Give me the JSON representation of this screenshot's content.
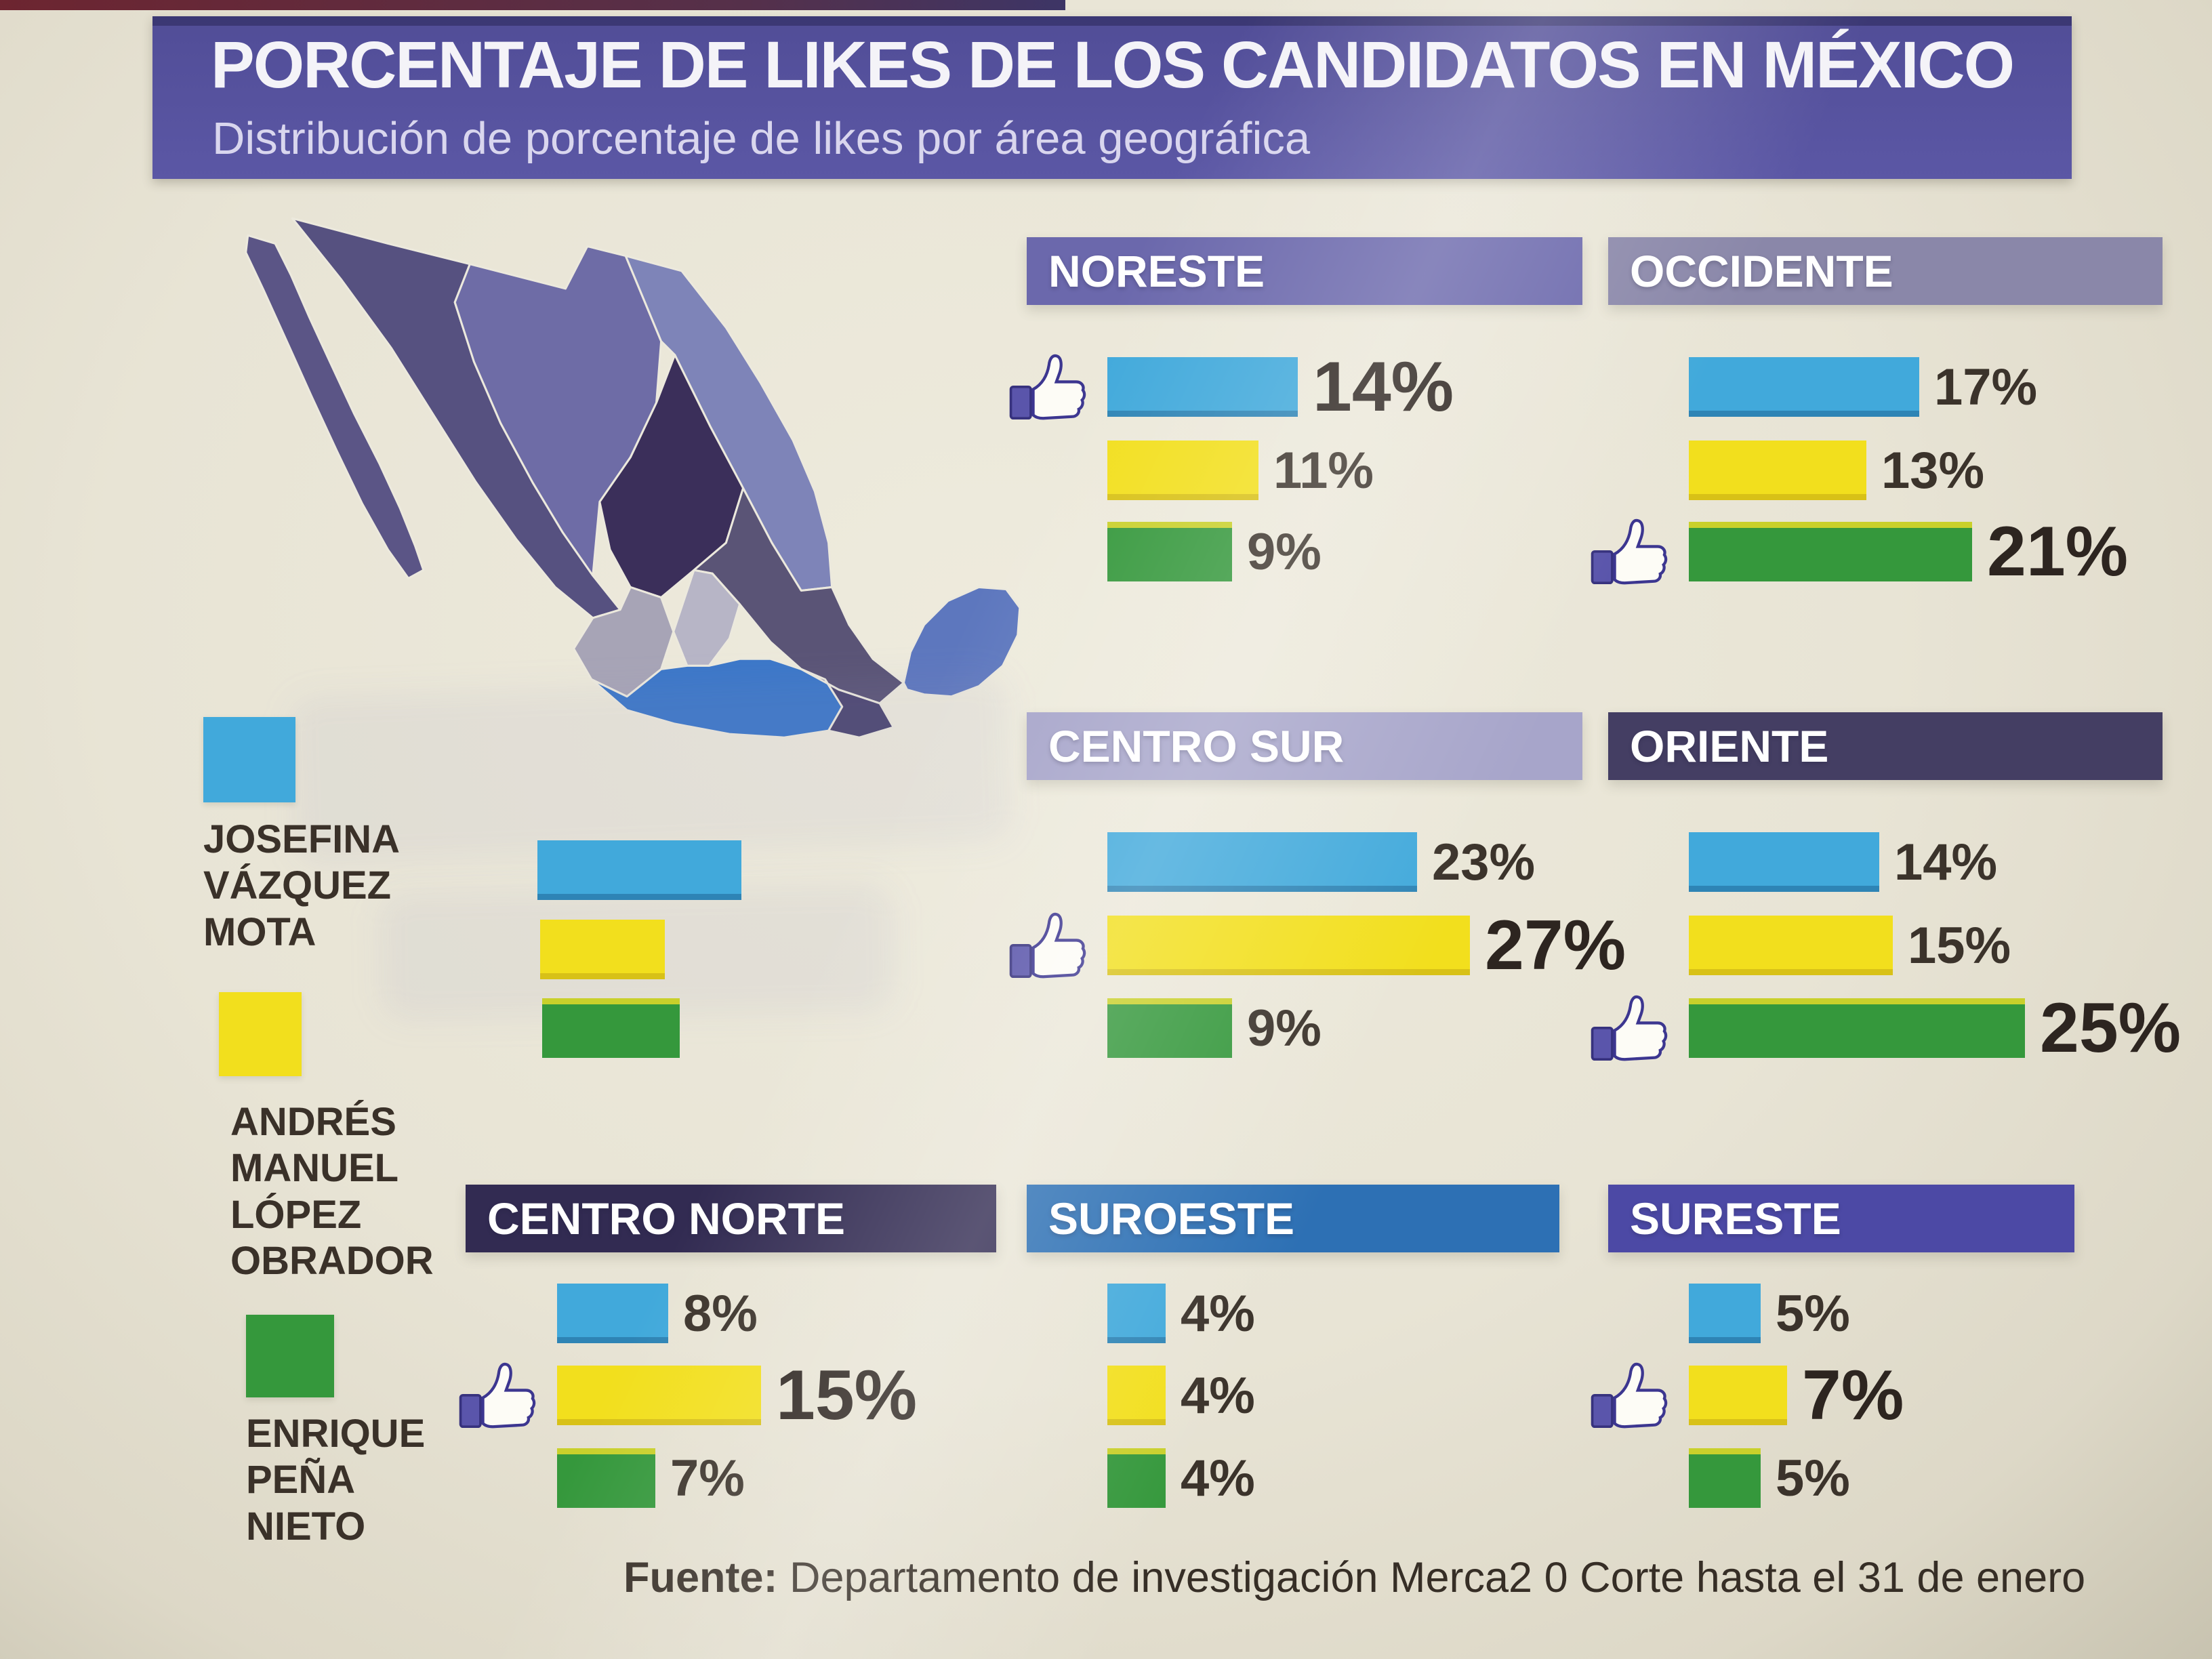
{
  "header": {
    "title": "PORCENTAJE DE LIKES DE LOS CANDIDATOS EN MÉXICO",
    "subtitle": "Distribución de porcentaje de likes por área geográfica"
  },
  "legend": {
    "candidates": [
      {
        "id": "jvm",
        "name_lines": "JOSEFINA\nVÁZQUEZ\nMOTA",
        "color": "#41a9db"
      },
      {
        "id": "amlo",
        "name_lines": "ANDRÉS\nMANUEL\nLÓPEZ\nOBRADOR",
        "color": "#f2df1d"
      },
      {
        "id": "epn",
        "name_lines": "ENRIQUE\nPEÑA\nNIETO",
        "color": "#35983c"
      }
    ]
  },
  "candidate_colors": {
    "jvm": {
      "fill": "#41a9db",
      "edge": "#2e84b5"
    },
    "amlo": {
      "fill": "#f2df1d",
      "edge": "#d8c117"
    },
    "epn": {
      "fill": "#35983c",
      "edge": "#c9d02b"
    }
  },
  "regions": [
    {
      "id": "noreste",
      "label": "NORESTE",
      "header_bg": "#6b68ac",
      "bars": [
        {
          "candidate": "jvm",
          "value": 14,
          "label": "14%",
          "thumb": true,
          "emphasized": true
        },
        {
          "candidate": "amlo",
          "value": 11,
          "label": "11%",
          "thumb": false,
          "emphasized": false
        },
        {
          "candidate": "epn",
          "value": 9,
          "label": "9%",
          "thumb": false,
          "emphasized": false
        }
      ]
    },
    {
      "id": "occidente",
      "label": "OCCIDENTE",
      "header_bg": "#8a87a9",
      "bars": [
        {
          "candidate": "jvm",
          "value": 17,
          "label": "17%",
          "thumb": false,
          "emphasized": false
        },
        {
          "candidate": "amlo",
          "value": 13,
          "label": "13%",
          "thumb": false,
          "emphasized": false
        },
        {
          "candidate": "epn",
          "value": 21,
          "label": "21%",
          "thumb": true,
          "emphasized": true
        }
      ]
    },
    {
      "id": "centro_sur",
      "label": "CENTRO SUR",
      "header_bg": "#a7a5ca",
      "bars": [
        {
          "candidate": "jvm",
          "value": 23,
          "label": "23%",
          "thumb": false,
          "emphasized": false
        },
        {
          "candidate": "amlo",
          "value": 27,
          "label": "27%",
          "thumb": true,
          "emphasized": true
        },
        {
          "candidate": "epn",
          "value": 9,
          "label": "9%",
          "thumb": false,
          "emphasized": false
        }
      ]
    },
    {
      "id": "oriente",
      "label": "ORIENTE",
      "header_bg": "#443e63",
      "bars": [
        {
          "candidate": "jvm",
          "value": 14,
          "label": "14%",
          "thumb": false,
          "emphasized": false
        },
        {
          "candidate": "amlo",
          "value": 15,
          "label": "15%",
          "thumb": false,
          "emphasized": false
        },
        {
          "candidate": "epn",
          "value": 25,
          "label": "25%",
          "thumb": true,
          "emphasized": true
        }
      ]
    },
    {
      "id": "centro_norte",
      "label": "CENTRO NORTE",
      "header_bg": "#322b52",
      "bars": [
        {
          "candidate": "jvm",
          "value": 8,
          "label": "8%",
          "thumb": false,
          "emphasized": false
        },
        {
          "candidate": "amlo",
          "value": 15,
          "label": "15%",
          "thumb": true,
          "emphasized": true
        },
        {
          "candidate": "epn",
          "value": 7,
          "label": "7%",
          "thumb": false,
          "emphasized": false
        }
      ]
    },
    {
      "id": "suroeste",
      "label": "SUROESTE",
      "header_bg": "#2d70b4",
      "bars": [
        {
          "candidate": "jvm",
          "value": 4,
          "label": "4%",
          "thumb": false,
          "emphasized": false
        },
        {
          "candidate": "amlo",
          "value": 4,
          "label": "4%",
          "thumb": false,
          "emphasized": false
        },
        {
          "candidate": "epn",
          "value": 4,
          "label": "4%",
          "thumb": false,
          "emphasized": false
        }
      ]
    },
    {
      "id": "sureste",
      "label": "SURESTE",
      "header_bg": "#4c49a5",
      "bars": [
        {
          "candidate": "jvm",
          "value": 5,
          "label": "5%",
          "thumb": false,
          "emphasized": false
        },
        {
          "candidate": "amlo",
          "value": 7,
          "label": "7%",
          "thumb": true,
          "emphasized": true
        },
        {
          "candidate": "epn",
          "value": 5,
          "label": "5%",
          "thumb": false,
          "emphasized": false
        }
      ]
    }
  ],
  "unlabeled_bar_group": {
    "labels_visible": false,
    "bars": [
      {
        "candidate": "jvm",
        "estimated_value": 15
      },
      {
        "candidate": "amlo",
        "estimated_value": 9
      },
      {
        "candidate": "epn",
        "estimated_value": 10
      }
    ]
  },
  "footer": {
    "prefix": "Fuente:",
    "text": " Departamento de investigación Merca2 0 Corte hasta el 31 de enero"
  },
  "chart_data": {
    "type": "bar",
    "title": "PORCENTAJE DE LIKES DE LOS CANDIDATOS EN MÉXICO",
    "subtitle": "Distribución de porcentaje de likes por área geográfica",
    "unit": "%",
    "categories": [
      "Josefina Vázquez Mota",
      "Andrés Manuel López Obrador",
      "Enrique Peña Nieto"
    ],
    "category_colors": [
      "#41a9db",
      "#f2df1d",
      "#35983c"
    ],
    "groups": [
      {
        "region": "NORESTE",
        "values": [
          14,
          11,
          9
        ],
        "liked_winner": "Josefina Vázquez Mota"
      },
      {
        "region": "OCCIDENTE",
        "values": [
          17,
          13,
          21
        ],
        "liked_winner": "Enrique Peña Nieto"
      },
      {
        "region": "CENTRO SUR",
        "values": [
          23,
          27,
          9
        ],
        "liked_winner": "Andrés Manuel López Obrador"
      },
      {
        "region": "ORIENTE",
        "values": [
          14,
          15,
          25
        ],
        "liked_winner": "Enrique Peña Nieto"
      },
      {
        "region": "CENTRO NORTE",
        "values": [
          8,
          15,
          7
        ],
        "liked_winner": "Andrés Manuel López Obrador"
      },
      {
        "region": "SUROESTE",
        "values": [
          4,
          4,
          4
        ],
        "liked_winner": null
      },
      {
        "region": "SURESTE",
        "values": [
          5,
          7,
          5
        ],
        "liked_winner": "Andrés Manuel López Obrador"
      }
    ],
    "unlabeled_group": {
      "values_visible": false,
      "estimated_values": [
        15,
        9,
        10
      ]
    },
    "legend_position": "left",
    "source": "Fuente: Departamento de investigación Merca2 0 Corte hasta el 31 de enero"
  }
}
